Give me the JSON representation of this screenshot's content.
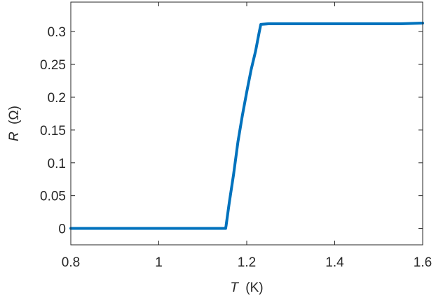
{
  "chart_data": {
    "type": "line",
    "title": "",
    "xlabel": {
      "variable": "T",
      "unit": "(K)"
    },
    "ylabel": {
      "variable": "R",
      "unit": "(Ω)"
    },
    "xlim": [
      0.8,
      1.6
    ],
    "ylim": [
      -0.025,
      0.345
    ],
    "xticks": [
      0.8,
      1.0,
      1.2,
      1.4,
      1.6
    ],
    "xtick_labels": [
      "0.8",
      "1",
      "1.2",
      "1.4",
      "1.6"
    ],
    "yticks": [
      0,
      0.05,
      0.1,
      0.15,
      0.2,
      0.25,
      0.3
    ],
    "ytick_labels": [
      "0",
      "0.05",
      "0.1",
      "0.15",
      "0.2",
      "0.25",
      "0.3"
    ],
    "grid": false,
    "legend": "none",
    "series": [
      {
        "color": "#0072BD",
        "x": [
          0.8,
          0.85,
          0.9,
          0.95,
          1.0,
          1.05,
          1.1,
          1.14,
          1.152,
          1.153,
          1.16,
          1.17,
          1.18,
          1.19,
          1.2,
          1.21,
          1.22,
          1.228,
          1.232,
          1.25,
          1.3,
          1.35,
          1.4,
          1.45,
          1.5,
          1.55,
          1.6
        ],
        "y": [
          0.0,
          0.0,
          0.0,
          0.0,
          0.0,
          0.0,
          0.0,
          0.0,
          0.0,
          0.004,
          0.038,
          0.082,
          0.132,
          0.172,
          0.208,
          0.242,
          0.27,
          0.298,
          0.311,
          0.312,
          0.312,
          0.312,
          0.312,
          0.312,
          0.312,
          0.312,
          0.313
        ]
      }
    ]
  }
}
